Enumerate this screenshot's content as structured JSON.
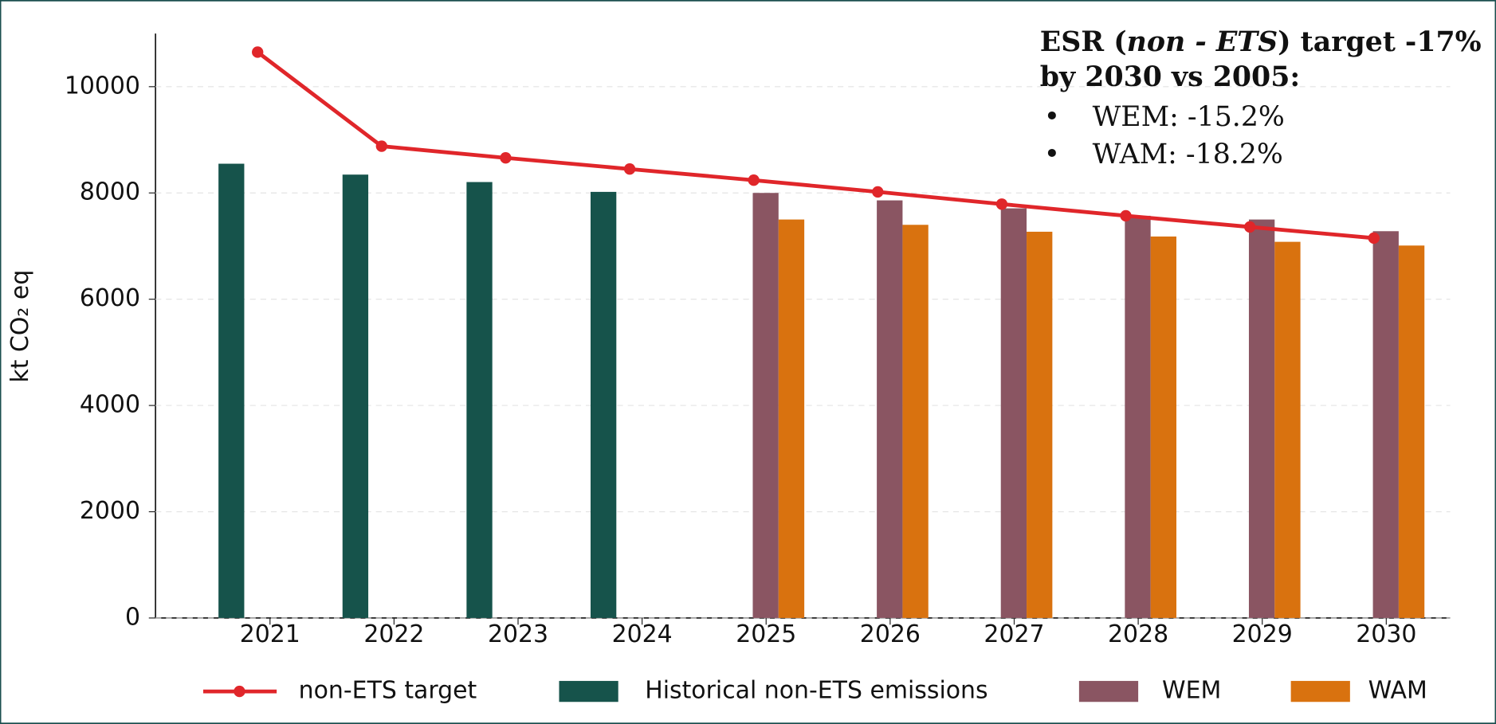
{
  "chart_data": {
    "type": "bar",
    "y_label": "kt CO₂ eq",
    "categories": [
      "2021",
      "2022",
      "2023",
      "2024",
      "2025",
      "2026",
      "2027",
      "2028",
      "2029",
      "2030"
    ],
    "series": [
      {
        "name": "non-ETS target",
        "type": "line",
        "color": "#e0262a",
        "values": [
          10650,
          8880,
          8660,
          8450,
          8240,
          8020,
          7790,
          7570,
          7360,
          7150
        ]
      },
      {
        "name": "Historical non-ETS emissions",
        "type": "bar",
        "color": "#16534b",
        "values": [
          8550,
          8345,
          8205,
          8020,
          null,
          null,
          null,
          null,
          null,
          null
        ]
      },
      {
        "name": "WEM",
        "type": "bar",
        "color": "#8a5562",
        "values": [
          null,
          null,
          null,
          null,
          8000,
          7860,
          7710,
          7570,
          7500,
          7280
        ]
      },
      {
        "name": "WAM",
        "type": "bar",
        "color": "#d9720f",
        "values": [
          null,
          null,
          null,
          null,
          7500,
          7400,
          7270,
          7180,
          7080,
          7010
        ]
      }
    ],
    "ylim": [
      0,
      11000
    ],
    "yticks": [
      0,
      2000,
      4000,
      6000,
      8000,
      10000
    ],
    "grid": true,
    "legend": "bottom",
    "annotation": {
      "line1": [
        "ESR (",
        "non - ETS",
        ") target -17%"
      ],
      "line2": "by 2030 vs 2005:",
      "bullets": [
        {
          "marker": "•",
          "text": "WEM: -15.2%",
          "color": "#1b4f4f"
        },
        {
          "marker": "•",
          "text": "WAM: -18.2%",
          "color": "#e8821e"
        }
      ],
      "color": "#1b4f4f"
    }
  }
}
